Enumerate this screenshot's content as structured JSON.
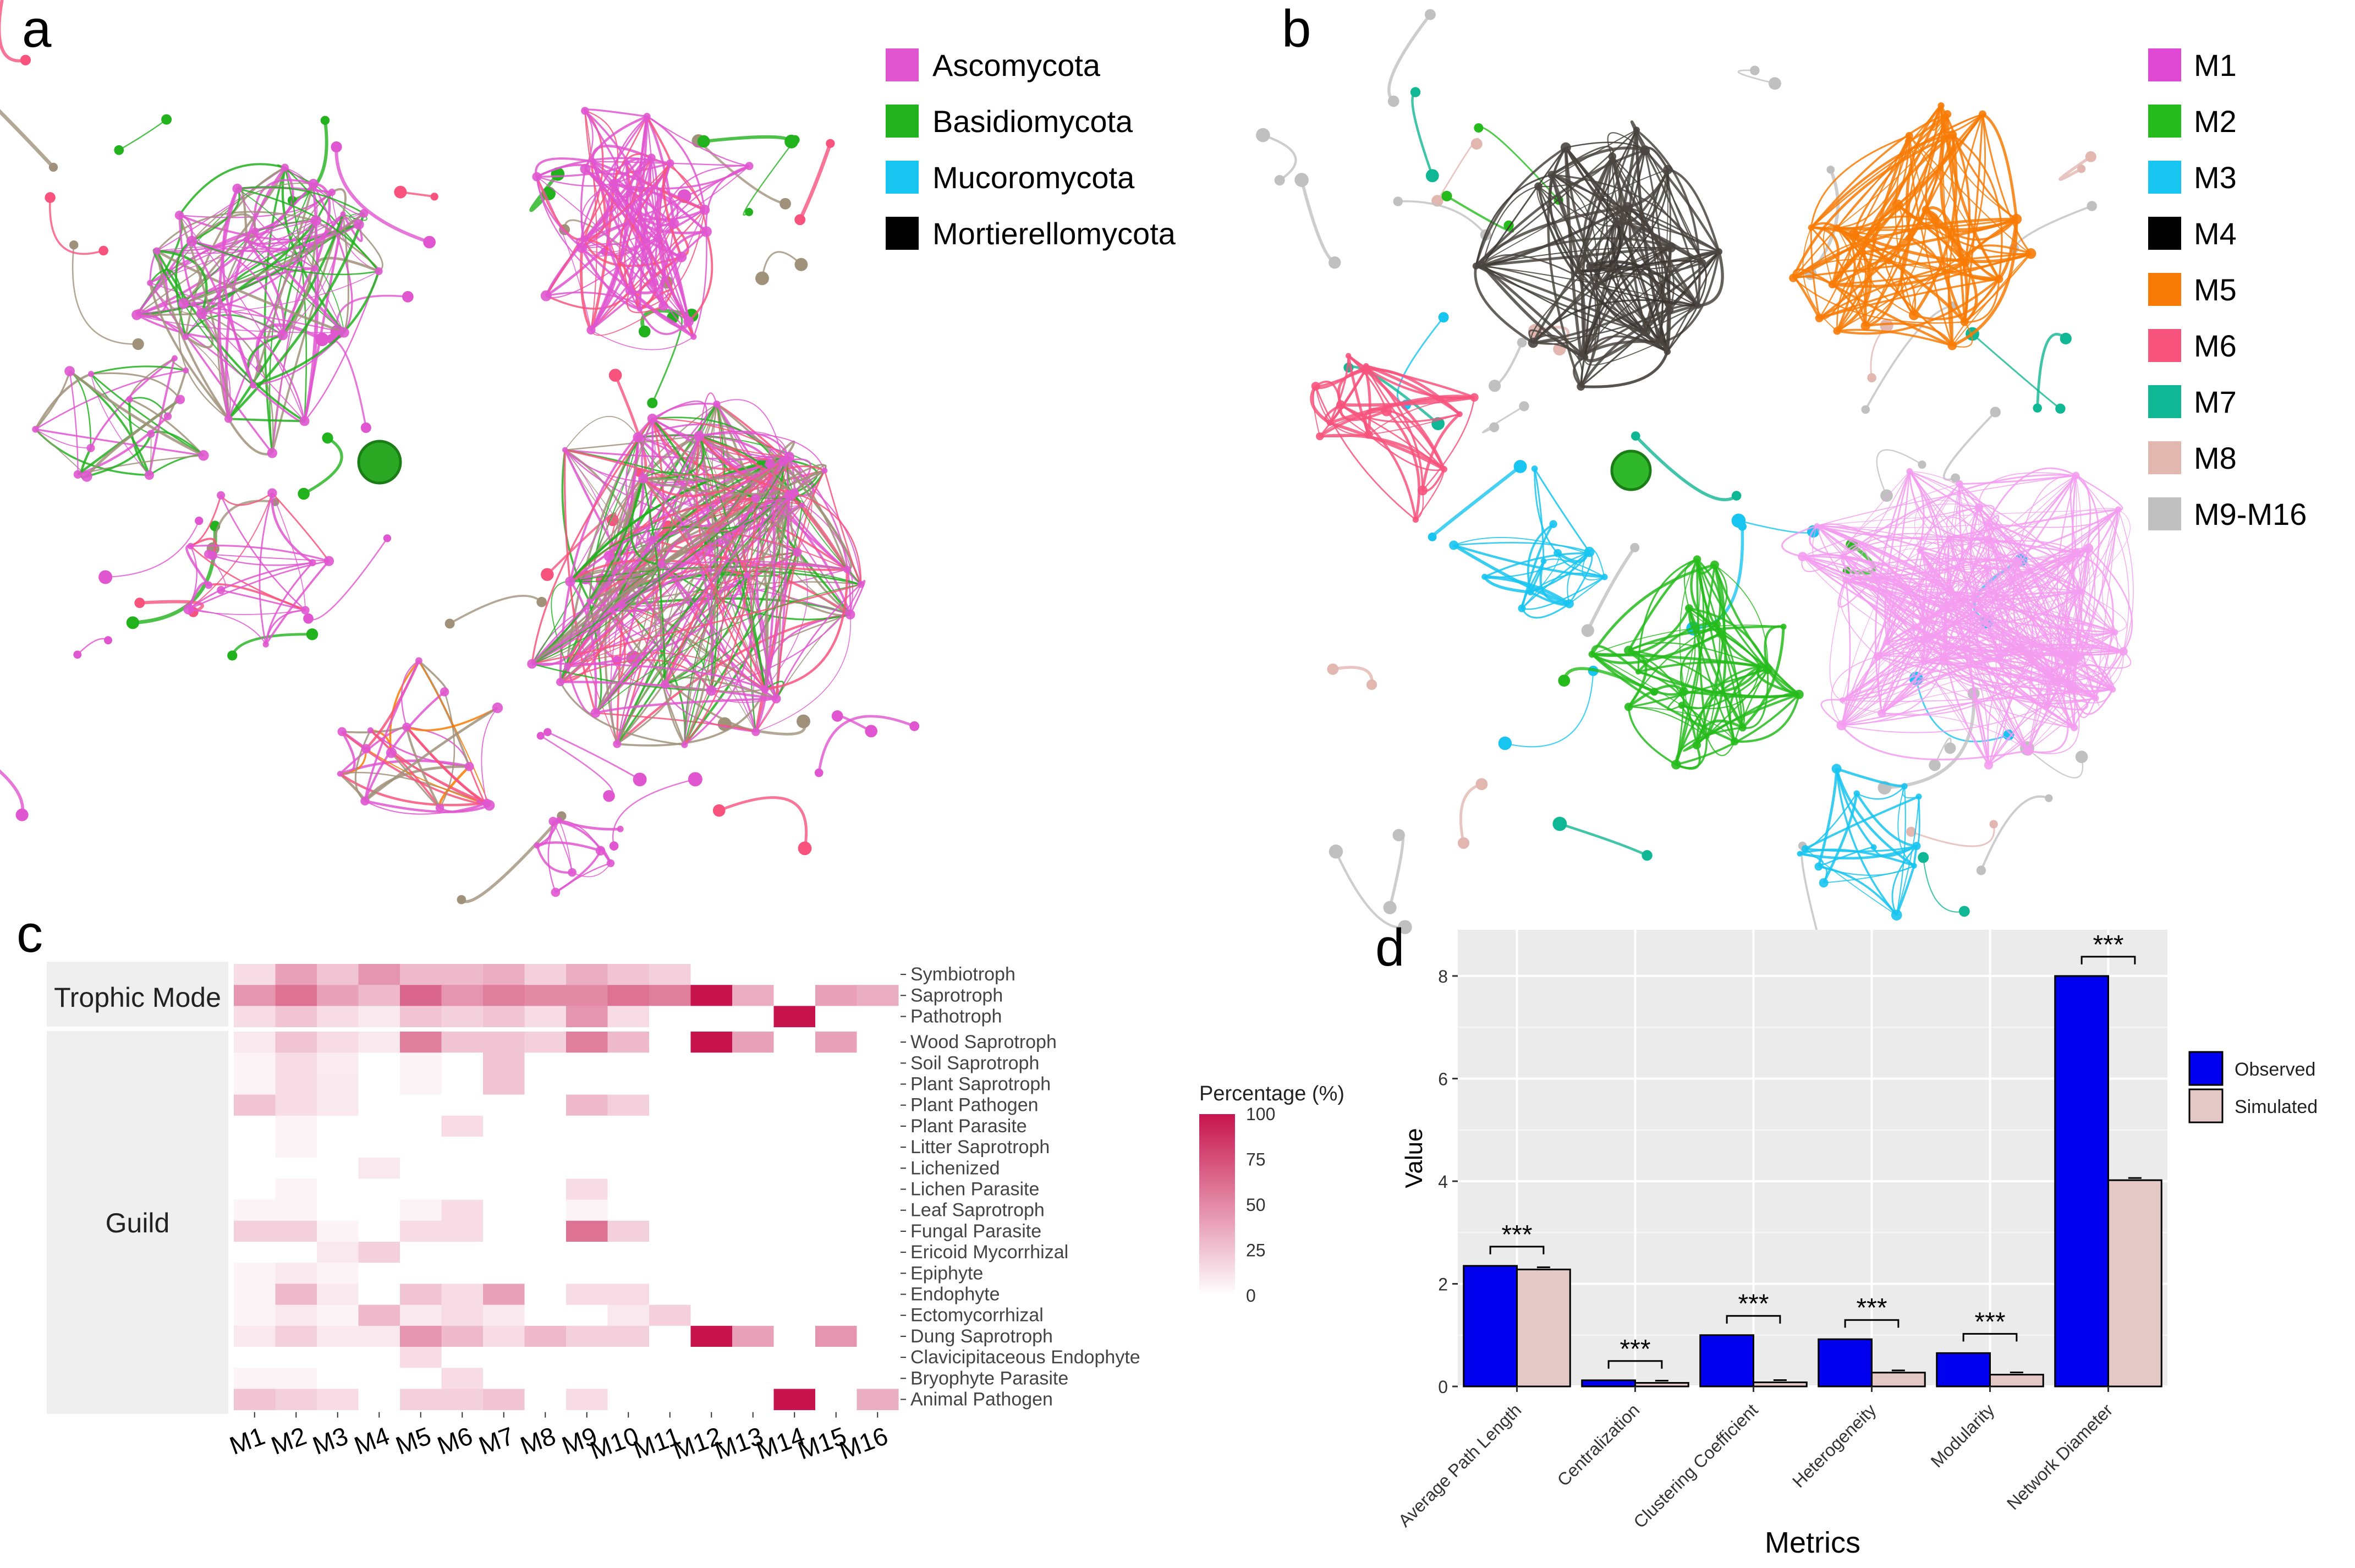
{
  "panel_labels": [
    "a",
    "b",
    "c",
    "d"
  ],
  "colors": {
    "ascomycota": "#e055d0",
    "basidiomycota": "#22b21e",
    "mucoromycota": "#18c4f0",
    "mortierellomycota": "#000000",
    "edge_gray": "#a0927a",
    "heat_low": "#ffffff",
    "heat_high": "#c7144f",
    "observed": "#0000ee",
    "simulated": "#e3c8c5",
    "module_colors": [
      "#de48d2",
      "#26bb1c",
      "#18c4f0",
      "#000000",
      "#f77b06",
      "#f7537d",
      "#10b794",
      "#e2b7b0",
      "#c0c0c0"
    ]
  },
  "legend_a": [
    "Ascomycota",
    "Basidiomycota",
    "Mucoromycota",
    "Mortierellomycota"
  ],
  "legend_b": [
    "M1",
    "M2",
    "M3",
    "M4",
    "M5",
    "M6",
    "M7",
    "M8",
    "M9-M16"
  ],
  "chart_data": [
    {
      "type": "heatmap",
      "panel": "c",
      "colorbar_title": "Percentage (%)",
      "colorbar_ticks": [
        100,
        75,
        50,
        25,
        0
      ],
      "group_labels": [
        "Trophic Mode",
        "Guild"
      ],
      "columns": [
        "M1",
        "M2",
        "M3",
        "M4",
        "M5",
        "M6",
        "M7",
        "M8",
        "M9",
        "M10",
        "M11",
        "M12",
        "M13",
        "M14",
        "M15",
        "M16"
      ],
      "rows": [
        "Symbiotroph",
        "Saprotroph",
        "Pathotroph",
        "Wood Saprotroph",
        "Soil Saprotroph",
        "Plant Saprotroph",
        "Plant Pathogen",
        "Plant Parasite",
        "Litter Saprotroph",
        "Lichenized",
        "Lichen Parasite",
        "Leaf Saprotroph",
        "Fungal Parasite",
        "Ericoid Mycorrhizal",
        "Epiphyte",
        "Endophyte",
        "Ectomycorrhizal",
        "Dung Saprotroph",
        "Clavicipitaceous Endophyte",
        "Bryophyte Parasite",
        "Animal Pathogen"
      ],
      "row_group": [
        0,
        0,
        0,
        1,
        1,
        1,
        1,
        1,
        1,
        1,
        1,
        1,
        1,
        1,
        1,
        1,
        1,
        1,
        1,
        1,
        1
      ],
      "values": [
        [
          15,
          40,
          25,
          45,
          30,
          30,
          35,
          20,
          35,
          25,
          20,
          0,
          0,
          0,
          0,
          0
        ],
        [
          45,
          60,
          40,
          30,
          65,
          45,
          55,
          50,
          50,
          60,
          55,
          100,
          35,
          0,
          40,
          35
        ],
        [
          15,
          25,
          15,
          10,
          25,
          20,
          25,
          15,
          45,
          15,
          0,
          0,
          0,
          100,
          0,
          0
        ],
        [
          10,
          25,
          15,
          10,
          55,
          25,
          25,
          20,
          55,
          30,
          0,
          100,
          40,
          0,
          40,
          0
        ],
        [
          5,
          15,
          8,
          0,
          5,
          0,
          25,
          0,
          0,
          0,
          0,
          0,
          0,
          0,
          0,
          0
        ],
        [
          5,
          15,
          10,
          0,
          5,
          0,
          25,
          0,
          0,
          0,
          0,
          0,
          0,
          0,
          0,
          0
        ],
        [
          25,
          15,
          10,
          0,
          0,
          0,
          0,
          0,
          30,
          20,
          0,
          0,
          0,
          0,
          0,
          0
        ],
        [
          0,
          5,
          0,
          0,
          0,
          15,
          0,
          0,
          0,
          0,
          0,
          0,
          0,
          0,
          0,
          0
        ],
        [
          0,
          5,
          0,
          0,
          0,
          0,
          0,
          0,
          0,
          0,
          0,
          0,
          0,
          0,
          0,
          0
        ],
        [
          0,
          0,
          0,
          10,
          0,
          0,
          0,
          0,
          0,
          0,
          0,
          0,
          0,
          0,
          0,
          0
        ],
        [
          0,
          5,
          0,
          0,
          0,
          0,
          0,
          0,
          15,
          0,
          0,
          0,
          0,
          0,
          0,
          0
        ],
        [
          5,
          5,
          0,
          0,
          5,
          15,
          0,
          0,
          5,
          0,
          0,
          0,
          0,
          0,
          0,
          0
        ],
        [
          20,
          20,
          5,
          0,
          15,
          15,
          0,
          0,
          60,
          20,
          0,
          0,
          0,
          0,
          0,
          0
        ],
        [
          0,
          0,
          10,
          20,
          0,
          0,
          0,
          0,
          0,
          0,
          0,
          0,
          0,
          0,
          0,
          0
        ],
        [
          5,
          10,
          5,
          0,
          0,
          0,
          0,
          0,
          0,
          0,
          0,
          0,
          0,
          0,
          0,
          0
        ],
        [
          5,
          30,
          10,
          0,
          25,
          15,
          40,
          0,
          15,
          15,
          0,
          0,
          0,
          0,
          0,
          0
        ],
        [
          5,
          10,
          5,
          30,
          10,
          15,
          10,
          0,
          0,
          10,
          20,
          0,
          0,
          0,
          0,
          0
        ],
        [
          10,
          20,
          10,
          10,
          45,
          30,
          15,
          30,
          20,
          20,
          0,
          100,
          40,
          0,
          45,
          0
        ],
        [
          0,
          0,
          0,
          0,
          15,
          0,
          0,
          0,
          0,
          0,
          0,
          0,
          0,
          0,
          0,
          0
        ],
        [
          5,
          5,
          0,
          0,
          0,
          15,
          0,
          0,
          0,
          0,
          0,
          0,
          0,
          0,
          0,
          0
        ],
        [
          25,
          20,
          15,
          0,
          20,
          20,
          25,
          0,
          15,
          0,
          0,
          0,
          0,
          100,
          0,
          35
        ]
      ]
    },
    {
      "type": "bar",
      "panel": "d",
      "categories": [
        "Average Path Length",
        "Centralization",
        "Clustering Coefficient",
        "Heterogeneity",
        "Modularity",
        "Network Diameter"
      ],
      "series": [
        {
          "name": "Observed",
          "values": [
            2.35,
            0.12,
            1.0,
            0.92,
            0.65,
            8.0
          ]
        },
        {
          "name": "Simulated",
          "values": [
            2.28,
            0.07,
            0.08,
            0.27,
            0.23,
            4.02
          ]
        }
      ],
      "significance": [
        "***",
        "***",
        "***",
        "***",
        "***",
        "***"
      ],
      "xlabel": "Metrics",
      "ylabel": "Value",
      "ylim": [
        0,
        8.9
      ],
      "yticks": [
        0,
        2,
        4,
        6,
        8
      ],
      "legend": "right",
      "grid": true
    }
  ]
}
